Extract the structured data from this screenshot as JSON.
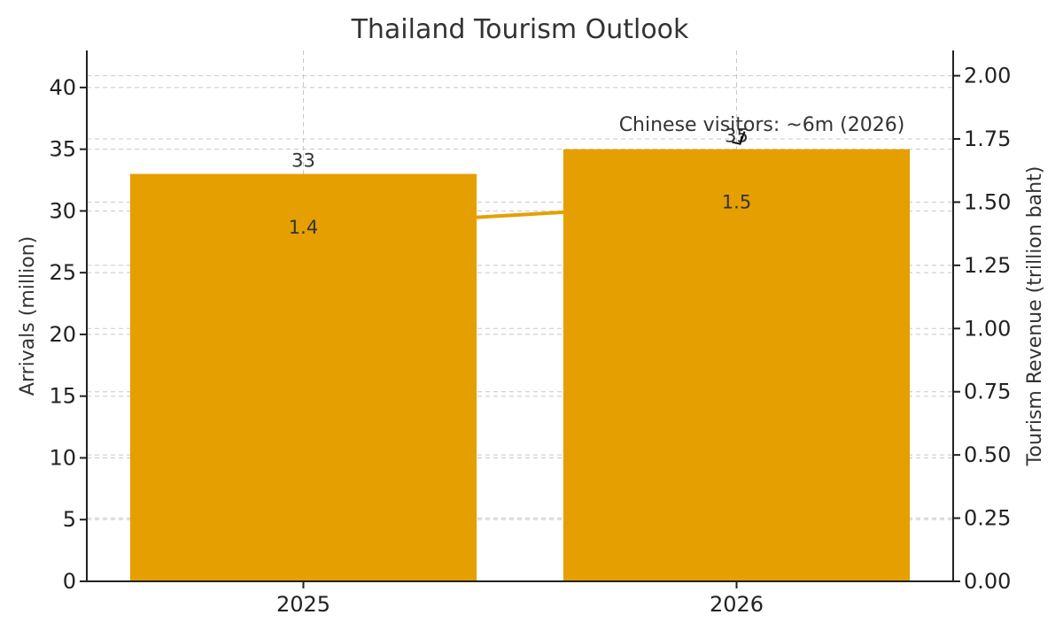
{
  "chart_data": {
    "type": "bar",
    "title": "Thailand Tourism Outlook",
    "categories": [
      "2025",
      "2026"
    ],
    "series": [
      {
        "name": "",
        "type": "bar",
        "axis": "left",
        "values": [
          33,
          35
        ],
        "labels": [
          "33",
          "35"
        ]
      },
      {
        "name": "",
        "type": "line",
        "axis": "right",
        "values": [
          1.4,
          1.5
        ],
        "labels": [
          "1.4",
          "1.5"
        ]
      }
    ],
    "ylabel": "Arrivals (million)",
    "ylim": [
      0,
      43
    ],
    "yticks": [
      0,
      5,
      10,
      15,
      20,
      25,
      30,
      35,
      40
    ],
    "ytick_labels": [
      "0",
      "5",
      "10",
      "15",
      "20",
      "25",
      "30",
      "35",
      "40"
    ],
    "y2label": "Tourism Revenue (trillion baht)",
    "y2lim": [
      0,
      2.1
    ],
    "y2ticks": [
      0,
      0.25,
      0.5,
      0.75,
      1.0,
      1.25,
      1.5,
      1.75,
      2.0
    ],
    "y2tick_labels": [
      "0.00",
      "0.25",
      "0.50",
      "0.75",
      "1.00",
      "1.25",
      "1.50",
      "1.75",
      "2.00"
    ],
    "annotation": {
      "text": "Chinese visitors: ~6m (2026)",
      "target_category": "2026",
      "target_value": 35
    },
    "grid": true,
    "colors": {
      "bar": "#E69F00",
      "line": "#E69F00",
      "text": "#333333",
      "grid": "#c8c8c8"
    }
  }
}
